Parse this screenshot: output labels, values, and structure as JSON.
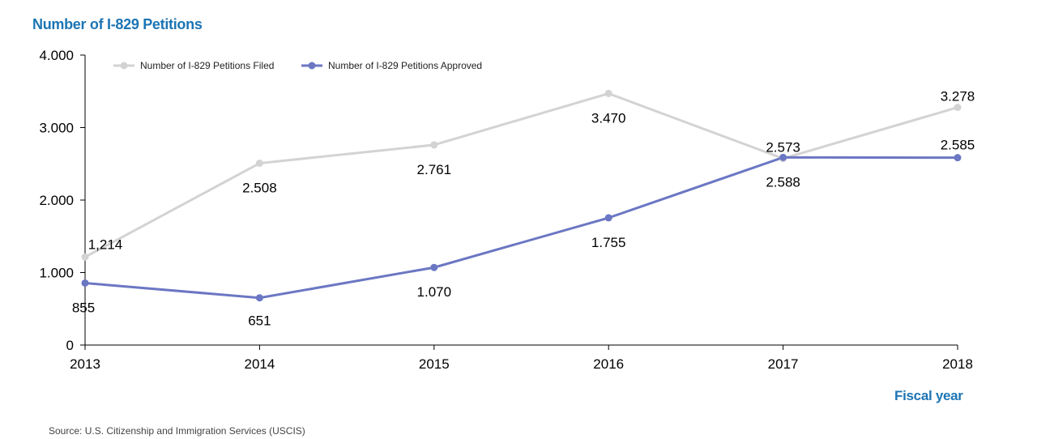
{
  "chart_data": {
    "type": "line",
    "title": "Number of I-829 Petitions",
    "xlabel": "Fiscal year",
    "ylabel": "",
    "x": [
      "2013",
      "2014",
      "2015",
      "2016",
      "2017",
      "2018"
    ],
    "ylim": [
      0,
      4000
    ],
    "yticks": [
      0,
      1000,
      2000,
      3000,
      4000
    ],
    "ytick_labels": [
      "0",
      "1.000",
      "2.000",
      "3.000",
      "4.000"
    ],
    "grid": false,
    "legend_position": "top-left",
    "series": [
      {
        "name": "Number of I-829 Petitions Filed",
        "color": "#d3d3d3",
        "values": [
          1214,
          2508,
          2761,
          3470,
          2573,
          3278
        ],
        "labels": [
          "1,214",
          "2.508",
          "2.761",
          "3.470",
          "2.573",
          "3.278"
        ]
      },
      {
        "name": "Number of I-829 Petitions Approved",
        "color": "#6b77c3",
        "values": [
          855,
          651,
          1070,
          1755,
          2588,
          2585
        ],
        "labels": [
          "855",
          "651",
          "1.070",
          "1.755",
          "2.588",
          "2.585"
        ]
      }
    ],
    "source": "Source: U.S. Citizenship and Immigration Services (USCIS)"
  }
}
